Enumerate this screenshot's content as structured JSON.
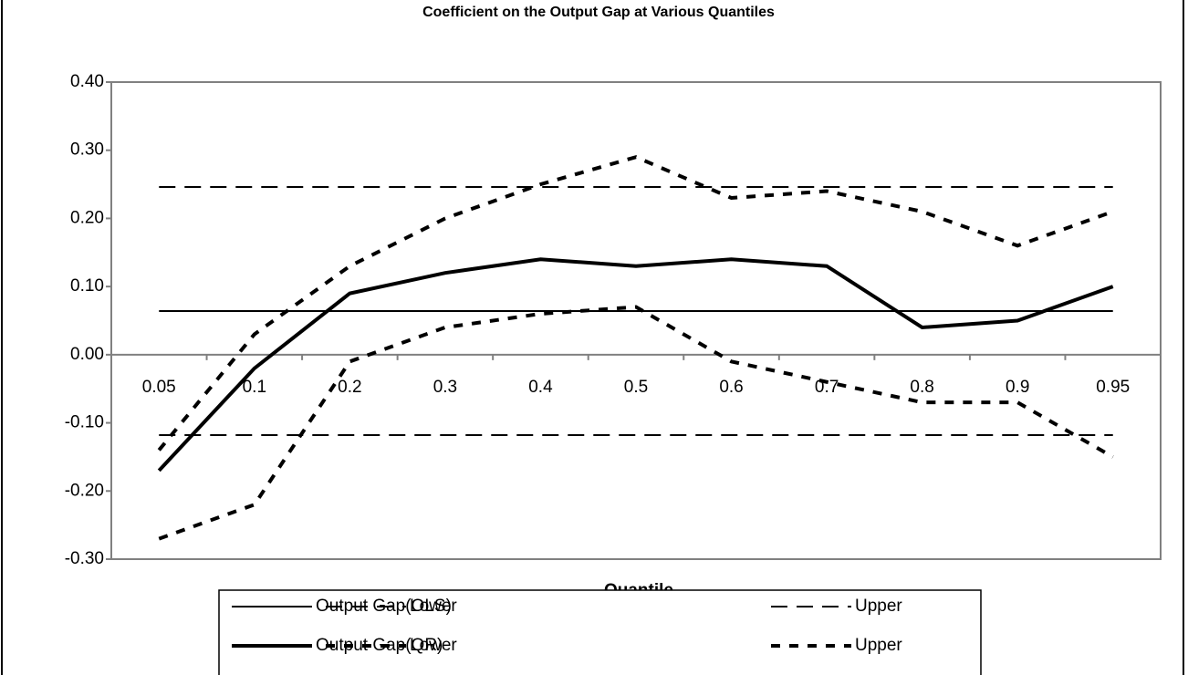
{
  "chart_data": {
    "type": "line",
    "title": "Coefficient on the Output Gap at Various Quantiles",
    "x_label": "Quantile",
    "categories": [
      "0.05",
      "0.1",
      "0.2",
      "0.3",
      "0.4",
      "0.5",
      "0.6",
      "0.7",
      "0.8",
      "0.9",
      "0.95"
    ],
    "series": [
      {
        "name": "Output Gap(OLS)",
        "color": "#000000",
        "style": "solid",
        "line_width": 2,
        "values": [
          0.064,
          0.064,
          0.064,
          0.064,
          0.064,
          0.064,
          0.064,
          0.064,
          0.064,
          0.064,
          0.064
        ]
      },
      {
        "name": "Lower",
        "color": "#000000",
        "style": "long-dash",
        "line_width": 2,
        "values": [
          -0.118,
          -0.118,
          -0.118,
          -0.118,
          -0.118,
          -0.118,
          -0.118,
          -0.118,
          -0.118,
          -0.118,
          -0.118
        ]
      },
      {
        "name": "Upper",
        "color": "#000000",
        "style": "long-dash",
        "line_width": 2,
        "values": [
          0.246,
          0.246,
          0.246,
          0.246,
          0.246,
          0.246,
          0.246,
          0.246,
          0.246,
          0.246,
          0.246
        ]
      },
      {
        "name": "Output Gap(QR)",
        "color": "#000000",
        "style": "solid",
        "line_width": 4,
        "values": [
          -0.17,
          -0.02,
          0.09,
          0.12,
          0.14,
          0.13,
          0.14,
          0.13,
          0.04,
          0.05,
          0.1
        ]
      },
      {
        "name": "Lower",
        "color": "#000000",
        "style": "short-dash",
        "line_width": 4,
        "values": [
          -0.27,
          -0.22,
          -0.01,
          0.04,
          0.06,
          0.07,
          -0.01,
          -0.04,
          -0.07,
          -0.07,
          -0.15
        ]
      },
      {
        "name": "Upper",
        "color": "#000000",
        "style": "short-dash",
        "line_width": 4,
        "values": [
          -0.14,
          0.03,
          0.13,
          0.2,
          0.25,
          0.29,
          0.23,
          0.24,
          0.21,
          0.16,
          0.21
        ]
      }
    ],
    "ylim": [
      -0.3,
      0.4
    ],
    "yticks": [
      {
        "value": -0.3,
        "label": "-0.30"
      },
      {
        "value": -0.2,
        "label": "-0.20"
      },
      {
        "value": -0.1,
        "label": "-0.10"
      },
      {
        "value": 0,
        "label": "0.00"
      },
      {
        "value": 0.1,
        "label": "0.10"
      },
      {
        "value": 0.2,
        "label": "0.20"
      },
      {
        "value": 0.3,
        "label": "0.30"
      },
      {
        "value": 0.4,
        "label": "0.40"
      }
    ],
    "grid": false
  }
}
